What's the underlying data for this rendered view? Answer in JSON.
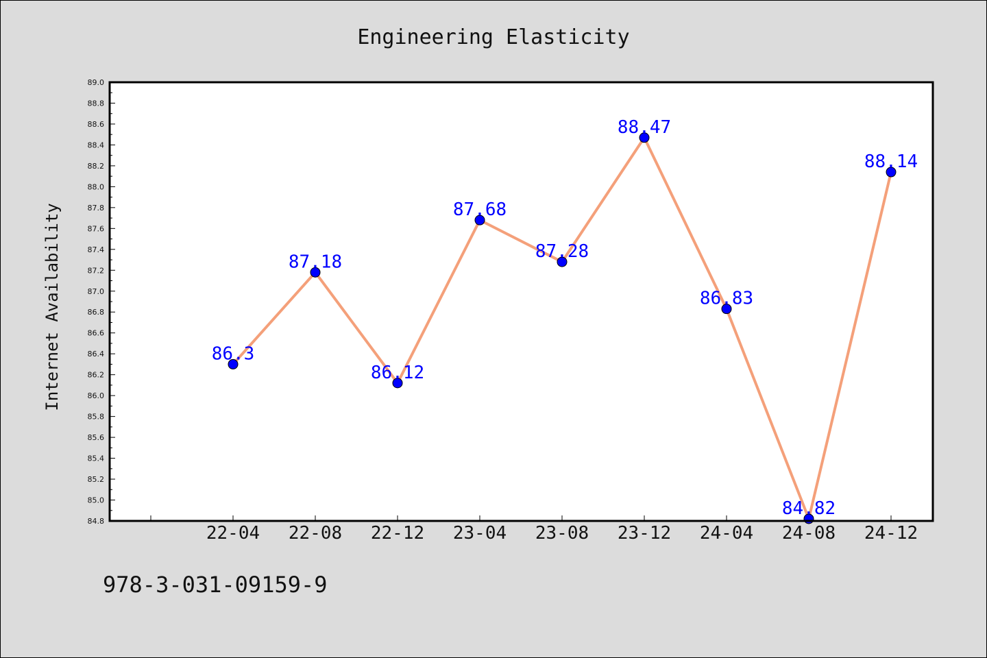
{
  "footer": {
    "isbn": "978-3-031-09159-9"
  },
  "chart_data": {
    "type": "line",
    "title": "Engineering Elasticity",
    "xlabel": "",
    "ylabel": "Internet Availability",
    "categories": [
      "22-04",
      "22-08",
      "22-12",
      "23-04",
      "23-08",
      "23-12",
      "24-04",
      "24-08",
      "24-12"
    ],
    "values": [
      86.3,
      87.18,
      86.12,
      87.68,
      87.28,
      88.47,
      86.83,
      84.82,
      88.14
    ],
    "data_labels": [
      "86.3",
      "87.18",
      "86.12",
      "87.68",
      "87.28",
      "88.47",
      "86.83",
      "84.82",
      "88.14"
    ],
    "ylim": [
      84.8,
      89.0
    ],
    "yticks": [
      "84.8",
      "85.0",
      "85.2",
      "85.4",
      "85.6",
      "85.8",
      "86.0",
      "86.2",
      "86.4",
      "86.6",
      "86.8",
      "87.0",
      "87.2",
      "87.4",
      "87.6",
      "87.8",
      "88.0",
      "88.2",
      "88.4",
      "88.6",
      "88.8",
      "89.0"
    ],
    "grid": false,
    "colors": {
      "line": "#f4a07a",
      "marker": "#0000ff",
      "label": "#0000ff",
      "background": "#dcdcdc",
      "plot_background": "#ffffff"
    }
  }
}
